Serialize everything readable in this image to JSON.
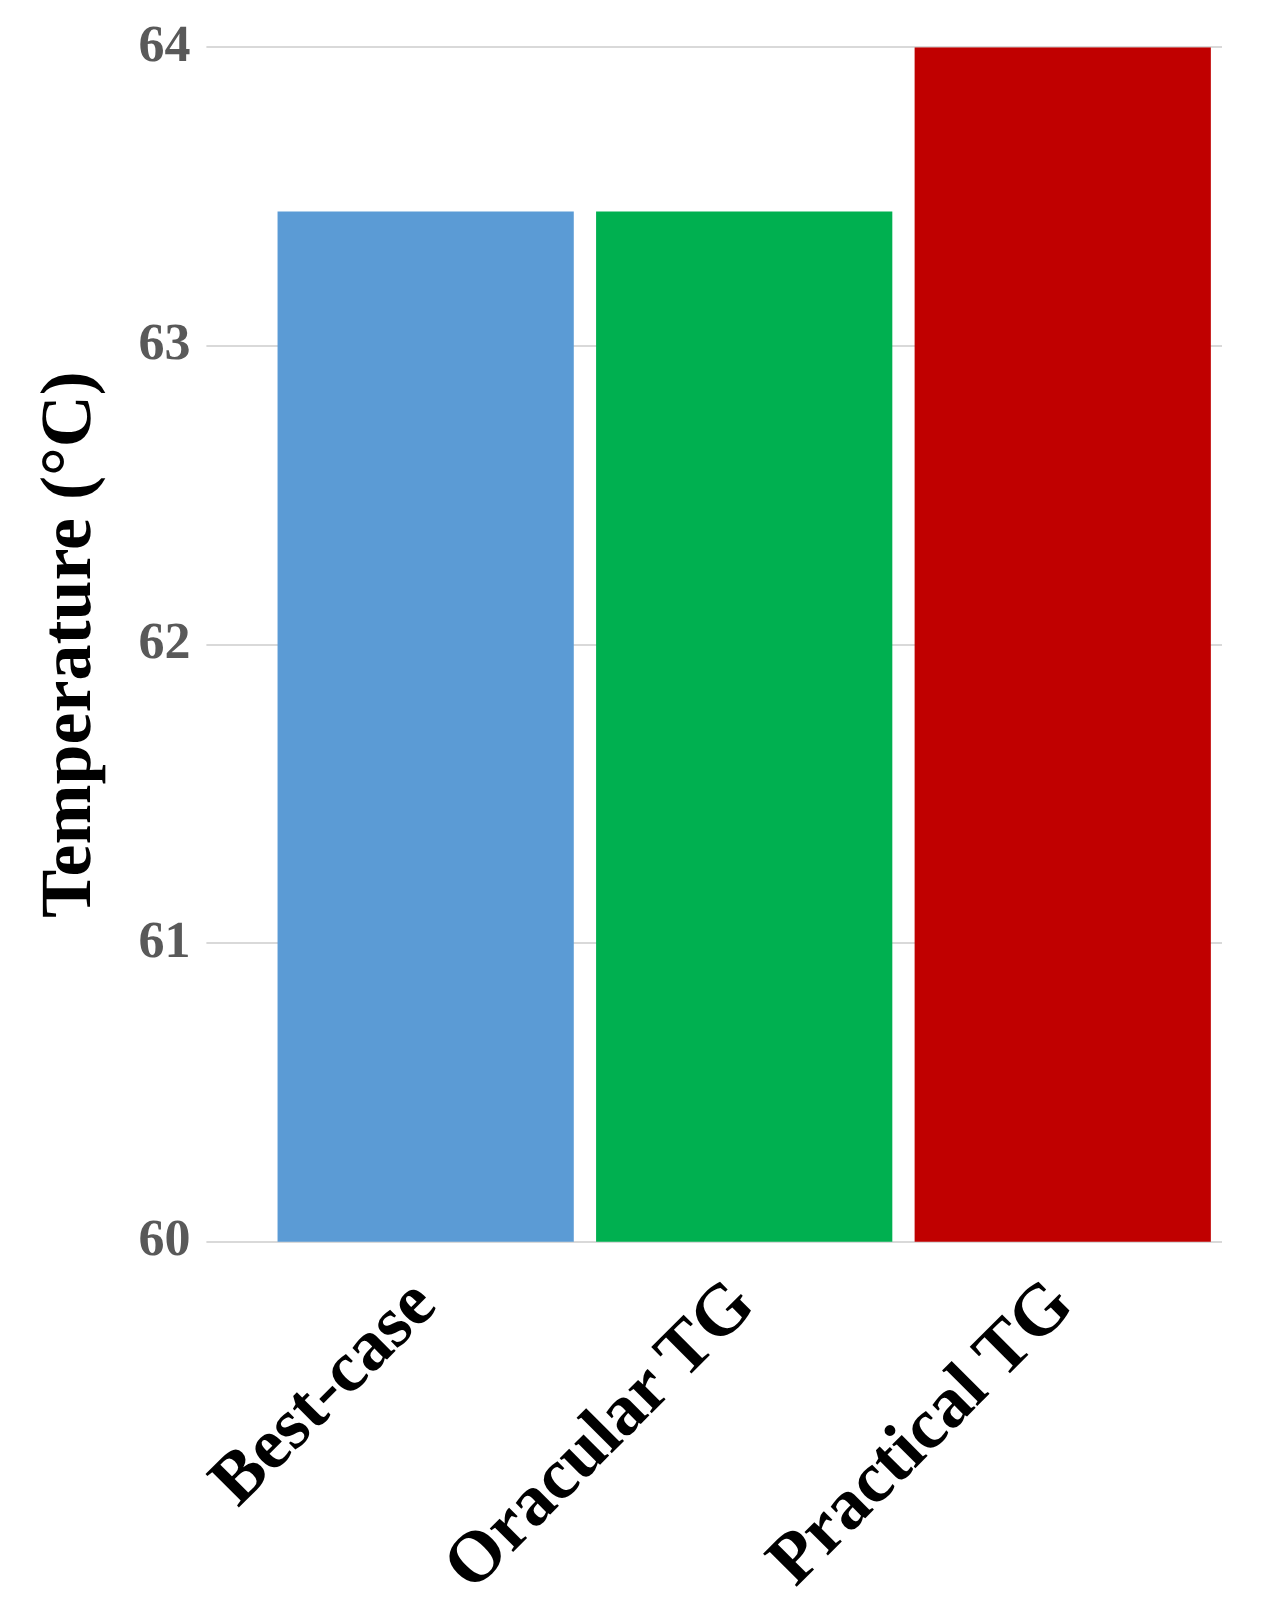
{
  "chart_data": {
    "type": "bar",
    "ylabel": "Temperature (°C)",
    "categories": [
      "Best-case",
      "Oracular TG",
      "Practical TG"
    ],
    "values": [
      63.45,
      63.45,
      64
    ],
    "colors": [
      "#5b9bd5",
      "#00b050",
      "#c00000"
    ],
    "ylim": [
      60,
      64
    ],
    "yticks": [
      60,
      61,
      62,
      63,
      64
    ],
    "grid": "y",
    "legend": false
  }
}
